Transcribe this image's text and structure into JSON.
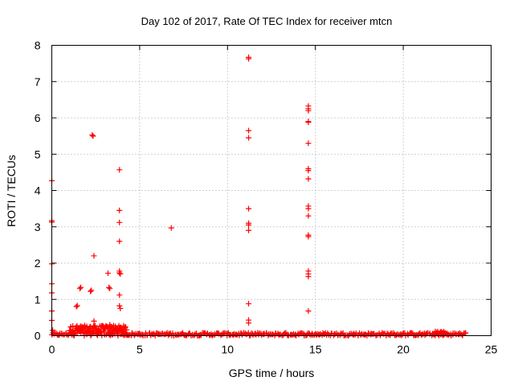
{
  "chart_data": {
    "type": "scatter",
    "title": "Day 102 of 2017, Rate Of TEC Index for receiver mtcn",
    "xlabel": "GPS time / hours",
    "ylabel": "ROTI / TECUs",
    "xlim": [
      0,
      25
    ],
    "ylim": [
      0,
      8
    ],
    "xticks": [
      "0",
      "5",
      "10",
      "15",
      "20",
      "25"
    ],
    "yticks": [
      "0",
      "1",
      "2",
      "3",
      "4",
      "5",
      "6",
      "7",
      "8"
    ],
    "grid": true,
    "marker": "+",
    "color": "#ff0000",
    "series": [
      {
        "name": "ROTI",
        "points": [
          [
            0.0,
            4.27
          ],
          [
            0.0,
            3.17
          ],
          [
            0.0,
            3.13
          ],
          [
            0.0,
            1.98
          ],
          [
            0.0,
            1.43
          ],
          [
            0.0,
            1.18
          ],
          [
            0.0,
            0.68
          ],
          [
            0.0,
            0.42
          ],
          [
            0.05,
            0.15
          ],
          [
            1.4,
            0.8
          ],
          [
            1.45,
            0.83
          ],
          [
            1.6,
            1.3
          ],
          [
            1.65,
            1.33
          ],
          [
            2.2,
            1.22
          ],
          [
            2.25,
            1.25
          ],
          [
            2.3,
            5.53
          ],
          [
            2.35,
            5.5
          ],
          [
            2.4,
            2.2
          ],
          [
            2.4,
            0.4
          ],
          [
            3.2,
            1.72
          ],
          [
            3.25,
            1.33
          ],
          [
            3.3,
            1.3
          ],
          [
            3.3,
            0.3
          ],
          [
            3.85,
            4.57
          ],
          [
            3.85,
            3.45
          ],
          [
            3.85,
            3.12
          ],
          [
            3.85,
            2.6
          ],
          [
            3.85,
            1.78
          ],
          [
            3.85,
            1.73
          ],
          [
            3.9,
            1.7
          ],
          [
            3.85,
            1.12
          ],
          [
            3.85,
            0.82
          ],
          [
            3.9,
            0.75
          ],
          [
            6.8,
            2.97
          ],
          [
            11.2,
            7.67
          ],
          [
            11.2,
            7.63
          ],
          [
            11.2,
            5.65
          ],
          [
            11.2,
            5.45
          ],
          [
            11.2,
            3.5
          ],
          [
            11.2,
            3.1
          ],
          [
            11.2,
            3.05
          ],
          [
            11.2,
            2.9
          ],
          [
            11.2,
            0.88
          ],
          [
            11.2,
            0.43
          ],
          [
            11.2,
            0.35
          ],
          [
            14.6,
            6.33
          ],
          [
            14.6,
            6.25
          ],
          [
            14.6,
            6.2
          ],
          [
            14.6,
            5.9
          ],
          [
            14.6,
            5.88
          ],
          [
            14.6,
            5.3
          ],
          [
            14.6,
            4.6
          ],
          [
            14.6,
            4.55
          ],
          [
            14.6,
            4.32
          ],
          [
            14.6,
            3.57
          ],
          [
            14.6,
            3.5
          ],
          [
            14.6,
            3.3
          ],
          [
            14.6,
            2.77
          ],
          [
            14.6,
            2.73
          ],
          [
            14.6,
            1.78
          ],
          [
            14.6,
            1.7
          ],
          [
            14.6,
            1.63
          ],
          [
            14.6,
            0.68
          ]
        ]
      }
    ],
    "baseline_band": {
      "description": "dense low-ROTI points along the baseline",
      "x_range": [
        0.0,
        23.6
      ],
      "y_typical_max": 0.08,
      "elevated_segments": [
        [
          1.0,
          4.3,
          0.28
        ],
        [
          21.8,
          22.4,
          0.12
        ]
      ]
    }
  }
}
